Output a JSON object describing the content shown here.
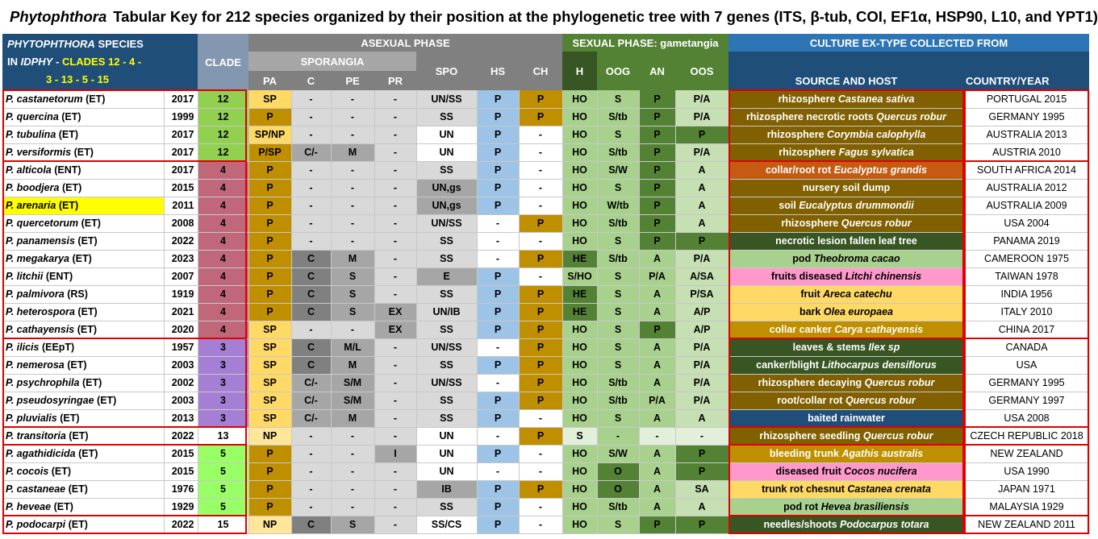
{
  "title": {
    "genus": "Phytophthora",
    "text": "Tabular Key for 212 species organized by their position at the phylogenetic tree with 7 genes (ITS, β-tub, COI, EF1α, HSP90, L10, and YPT1)"
  },
  "headers": {
    "species_line1_genus": "PHYTOPHTHORA",
    "species_line1_rest": "SPECIES",
    "species_line2_pre": "IN",
    "species_line2_idphy": "IDPHY",
    "species_line2_dash": "-",
    "species_line2_clades": "CLADES 12 - 4 -",
    "species_line3": "3 - 13 - 5 - 15",
    "clade": "CLADE",
    "asexual": "ASEXUAL PHASE",
    "sporangia": "SPORANGIA",
    "pa": "PA",
    "c": "C",
    "pe": "PE",
    "pr": "PR",
    "spo": "SPO",
    "hs": "HS",
    "ch": "CH",
    "sexual": "SEXUAL PHASE: gametangia",
    "h": "H",
    "oog": "OOG",
    "an": "AN",
    "oos": "OOS",
    "culture": "CULTURE EX-TYPE COLLECTED FROM",
    "source": "SOURCE AND HOST",
    "country": "COUNTRY/YEAR"
  },
  "colors": {
    "header_blue": "#1f4e79",
    "header_gray": "#808080",
    "header_light_gray": "#a6a6a6",
    "header_green": "#548235",
    "clade12": "#92d050",
    "clade4": "#c0687a",
    "clade3": "#a57fd4",
    "clade5": "#99ff66",
    "clade15": "#ffffff",
    "highlight": "#ffff00",
    "group_border": "#e00000"
  },
  "rows": [
    {
      "name_sp": "P. castanetorum",
      "name_tag": "(ET)",
      "year": "2017",
      "clade": "12",
      "pa": "SP",
      "c": "-",
      "pe": "-",
      "pr": "-",
      "spo": "UN/SS",
      "hs": "P",
      "ch": "P",
      "h": "HO",
      "oog": "S",
      "an": "P",
      "oos": "P/A",
      "source_text": "rhizosphere",
      "source_host": "Castanea sativa",
      "country": "PORTUGAL 2015"
    },
    {
      "name_sp": "P. quercina",
      "name_tag": "(ET)",
      "year": "1999",
      "clade": "12",
      "pa": "P",
      "c": "-",
      "pe": "-",
      "pr": "-",
      "spo": "SS",
      "hs": "P",
      "ch": "P",
      "h": "HO",
      "oog": "S/tb",
      "an": "P",
      "oos": "P/A",
      "source_text": "rhizosphere necrotic roots",
      "source_host": "Quercus robur",
      "country": "GERMANY 1995"
    },
    {
      "name_sp": "P. tubulina",
      "name_tag": "(ET)",
      "year": "2017",
      "clade": "12",
      "pa": "SP/NP",
      "c": "-",
      "pe": "-",
      "pr": "-",
      "spo": "UN",
      "hs": "P",
      "ch": "-",
      "h": "HO",
      "oog": "S",
      "an": "P",
      "oos": "P",
      "source_text": "rhizosphere",
      "source_host": "Corymbia calophylla",
      "country": "AUSTRALIA 2013"
    },
    {
      "name_sp": "P. versiformis",
      "name_tag": "(ET)",
      "year": "2017",
      "clade": "12",
      "pa": "P/SP",
      "c": "C/-",
      "pe": "M",
      "pr": "-",
      "spo": "UN",
      "hs": "P",
      "ch": "-",
      "h": "HO",
      "oog": "S/tb",
      "an": "P",
      "oos": "P/A",
      "source_text": "rhizosphere",
      "source_host": "Fagus sylvatica",
      "country": "AUSTRIA 2010"
    },
    {
      "name_sp": "P. alticola",
      "name_tag": "(ENT)",
      "year": "2017",
      "clade": "4",
      "pa": "P",
      "c": "-",
      "pe": "-",
      "pr": "-",
      "spo": "SS",
      "hs": "P",
      "ch": "-",
      "h": "HO",
      "oog": "S/W",
      "an": "P",
      "oos": "A",
      "source_text": "collar/root rot",
      "source_host": "Eucalyptus grandis",
      "country": "SOUTH AFRICA 2014"
    },
    {
      "name_sp": "P. boodjera",
      "name_tag": "(ET)",
      "year": "2015",
      "clade": "4",
      "pa": "P",
      "c": "-",
      "pe": "-",
      "pr": "-",
      "spo": "UN,gs",
      "hs": "P",
      "ch": "-",
      "h": "HO",
      "oog": "S",
      "an": "P",
      "oos": "A",
      "source_text": "nursery soil dump",
      "source_host": "",
      "country": "AUSTRALIA 2012"
    },
    {
      "name_sp": "P. arenaria",
      "name_tag": "(ET)",
      "year": "2011",
      "clade": "4",
      "pa": "P",
      "c": "-",
      "pe": "-",
      "pr": "-",
      "spo": "UN,gs",
      "hs": "P",
      "ch": "-",
      "h": "HO",
      "oog": "W/tb",
      "an": "P",
      "oos": "A",
      "source_text": "soil",
      "source_host": "Eucalyptus drummondii",
      "country": "AUSTRALIA 2009"
    },
    {
      "name_sp": "P. quercetorum",
      "name_tag": "(ET)",
      "year": "2008",
      "clade": "4",
      "pa": "P",
      "c": "-",
      "pe": "-",
      "pr": "-",
      "spo": "UN/SS",
      "hs": "-",
      "ch": "P",
      "h": "HO",
      "oog": "S/tb",
      "an": "P",
      "oos": "A",
      "source_text": "rhizosphere",
      "source_host": "Quercus robur",
      "country": "USA 2004"
    },
    {
      "name_sp": "P. panamensis",
      "name_tag": "(ET)",
      "year": "2022",
      "clade": "4",
      "pa": "P",
      "c": "-",
      "pe": "-",
      "pr": "-",
      "spo": "SS",
      "hs": "-",
      "ch": "-",
      "h": "HO",
      "oog": "S",
      "an": "P",
      "oos": "P",
      "source_text": "necrotic lesion fallen leaf tree",
      "source_host": "",
      "country": "PANAMA 2019"
    },
    {
      "name_sp": "P. megakarya",
      "name_tag": "(ET)",
      "year": "2023",
      "clade": "4",
      "pa": "P",
      "c": "C",
      "pe": "M",
      "pr": "-",
      "spo": "SS",
      "hs": "-",
      "ch": "P",
      "h": "HE",
      "oog": "S/tb",
      "an": "A",
      "oos": "P/A",
      "source_text": "pod",
      "source_host": "Theobroma cacao",
      "country": "CAMEROON 1975"
    },
    {
      "name_sp": "P. litchii",
      "name_tag": "(ENT)",
      "year": "2007",
      "clade": "4",
      "pa": "P",
      "c": "C",
      "pe": "S",
      "pr": "-",
      "spo": "E",
      "hs": "P",
      "ch": "-",
      "h": "S/HO",
      "oog": "S",
      "an": "P/A",
      "oos": "A/SA",
      "source_text": "fruits diseased",
      "source_host": "Litchi chinensis",
      "country": "TAIWAN 1978"
    },
    {
      "name_sp": "P. palmivora",
      "name_tag": "(RS)",
      "year": "1919",
      "clade": "4",
      "pa": "P",
      "c": "C",
      "pe": "S",
      "pr": "-",
      "spo": "SS",
      "hs": "P",
      "ch": "P",
      "h": "HE",
      "oog": "S",
      "an": "A",
      "oos": "P/SA",
      "source_text": "fruit",
      "source_host": "Areca catechu",
      "country": "INDIA 1956"
    },
    {
      "name_sp": "P. heterospora",
      "name_tag": "(ET)",
      "year": "2021",
      "clade": "4",
      "pa": "P",
      "c": "C",
      "pe": "S",
      "pr": "EX",
      "spo": "UN/IB",
      "hs": "P",
      "ch": "P",
      "h": "HE",
      "oog": "S",
      "an": "A",
      "oos": "A/P",
      "source_text": "bark",
      "source_host": "Olea europaea",
      "country": "ITALY 2010"
    },
    {
      "name_sp": "P. cathayensis",
      "name_tag": "(ET)",
      "year": "2020",
      "clade": "4",
      "pa": "SP",
      "c": "-",
      "pe": "-",
      "pr": "EX",
      "spo": "SS",
      "hs": "P",
      "ch": "P",
      "h": "HO",
      "oog": "S",
      "an": "P",
      "oos": "A/P",
      "source_text": "collar canker",
      "source_host": "Carya cathayensis",
      "country": "CHINA 2017"
    },
    {
      "name_sp": "P. ilicis",
      "name_tag": "(EEpT)",
      "year": "1957",
      "clade": "3",
      "pa": "SP",
      "c": "C",
      "pe": "M/L",
      "pr": "-",
      "spo": "UN/SS",
      "hs": "-",
      "ch": "P",
      "h": "HO",
      "oog": "S",
      "an": "A",
      "oos": "P/A",
      "source_text": "leaves & stems",
      "source_host": "Ilex sp",
      "country": "CANADA"
    },
    {
      "name_sp": "P. nemerosa",
      "name_tag": "(ET)",
      "year": "2003",
      "clade": "3",
      "pa": "SP",
      "c": "C",
      "pe": "M",
      "pr": "-",
      "spo": "SS",
      "hs": "P",
      "ch": "P",
      "h": "HO",
      "oog": "S",
      "an": "A",
      "oos": "P/A",
      "source_text": "canker/blight",
      "source_host": "Lithocarpus densiflorus",
      "country": "USA"
    },
    {
      "name_sp": "P. psychrophila",
      "name_tag": "(ET)",
      "year": "2002",
      "clade": "3",
      "pa": "SP",
      "c": "C/-",
      "pe": "S/M",
      "pr": "-",
      "spo": "UN/SS",
      "hs": "-",
      "ch": "P",
      "h": "HO",
      "oog": "S/tb",
      "an": "A",
      "oos": "P/A",
      "source_text": "rhizosphere decaying",
      "source_host": "Quercus robur",
      "country": "GERMANY 1995"
    },
    {
      "name_sp": "P. pseudosyringae",
      "name_tag": "(ET)",
      "year": "2003",
      "clade": "3",
      "pa": "SP",
      "c": "C/-",
      "pe": "S/M",
      "pr": "-",
      "spo": "SS",
      "hs": "P",
      "ch": "P",
      "h": "HO",
      "oog": "S/tb",
      "an": "P/A",
      "oos": "P/A",
      "source_text": "root/collar rot",
      "source_host": "Quercus robur",
      "country": "GERMANY 1997"
    },
    {
      "name_sp": "P. pluvialis",
      "name_tag": "(ET)",
      "year": "2013",
      "clade": "3",
      "pa": "SP",
      "c": "C/-",
      "pe": "M",
      "pr": "-",
      "spo": "SS",
      "hs": "P",
      "ch": "-",
      "h": "HO",
      "oog": "S",
      "an": "A",
      "oos": "A",
      "source_text": "baited rainwater",
      "source_host": "",
      "country": "USA 2008"
    },
    {
      "name_sp": "P. transitoria",
      "name_tag": "(ET)",
      "year": "2022",
      "clade": "13",
      "pa": "NP",
      "c": "-",
      "pe": "-",
      "pr": "-",
      "spo": "UN",
      "hs": "-",
      "ch": "P",
      "h": "S",
      "oog": "-",
      "an": "-",
      "oos": "-",
      "source_text": "rhizosphere seedling",
      "source_host": "Quercus robur",
      "country": "CZECH REPUBLIC 2018"
    },
    {
      "name_sp": "P. agathidicida",
      "name_tag": "(ET)",
      "year": "2015",
      "clade": "5",
      "pa": "P",
      "c": "-",
      "pe": "-",
      "pr": "I",
      "spo": "UN",
      "hs": "P",
      "ch": "-",
      "h": "HO",
      "oog": "S/W",
      "an": "A",
      "oos": "P",
      "source_text": "bleeding trunk",
      "source_host": "Agathis australis",
      "country": "NEW ZEALAND"
    },
    {
      "name_sp": "P. cocois",
      "name_tag": "(ET)",
      "year": "2015",
      "clade": "5",
      "pa": "P",
      "c": "-",
      "pe": "-",
      "pr": "-",
      "spo": "UN",
      "hs": "-",
      "ch": "-",
      "h": "HO",
      "oog": "O",
      "an": "A",
      "oos": "P",
      "source_text": "diseased fruit",
      "source_host": "Cocos nucifera",
      "country": "USA 1990"
    },
    {
      "name_sp": "P. castaneae",
      "name_tag": "(ET)",
      "year": "1976",
      "clade": "5",
      "pa": "P",
      "c": "-",
      "pe": "-",
      "pr": "-",
      "spo": "IB",
      "hs": "P",
      "ch": "P",
      "h": "HO",
      "oog": "O",
      "an": "A",
      "oos": "SA",
      "source_text": "trunk rot chesnut",
      "source_host": "Castanea crenata",
      "country": "JAPAN 1971"
    },
    {
      "name_sp": "P. heveae",
      "name_tag": "(ET)",
      "year": "1929",
      "clade": "5",
      "pa": "P",
      "c": "-",
      "pe": "-",
      "pr": "-",
      "spo": "SS",
      "hs": "P",
      "ch": "-",
      "h": "HO",
      "oog": "S/tb",
      "an": "A",
      "oos": "A",
      "source_text": "pod rot",
      "source_host": "Hevea brasiliensis",
      "country": "MALAYSIA 1929"
    },
    {
      "name_sp": "P. podocarpi",
      "name_tag": "(ET)",
      "year": "2022",
      "clade": "15",
      "pa": "NP",
      "c": "C",
      "pe": "S",
      "pr": "-",
      "spo": "SS/CS",
      "hs": "P",
      "ch": "-",
      "h": "HO",
      "oog": "S",
      "an": "P",
      "oos": "P",
      "source_text": "needles/shoots",
      "source_host": "Podocarpus totara",
      "country": "NEW ZEALAND 2011"
    }
  ]
}
